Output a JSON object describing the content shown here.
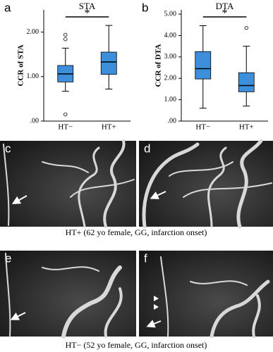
{
  "chart_data": [
    {
      "type": "box",
      "panel_label": "a",
      "title": "STA",
      "y_label": "CCR of STA",
      "categories": [
        "HT−",
        "HT+"
      ],
      "color": "#3d8fdc",
      "boxes": [
        {
          "min": 0.67,
          "q1": 0.88,
          "median": 1.06,
          "q3": 1.25,
          "max": 1.64,
          "outliers": [
            1.94,
            1.84,
            0.15
          ]
        },
        {
          "min": 0.72,
          "q1": 1.05,
          "median": 1.33,
          "q3": 1.55,
          "max": 2.15,
          "outliers": []
        }
      ],
      "ylim": [
        0,
        2.5
      ],
      "yticks": [
        {
          "value": 0,
          "label": ".00"
        },
        {
          "value": 1,
          "label": "1.00"
        },
        {
          "value": 2,
          "label": "2.00"
        }
      ],
      "annotation": "*"
    },
    {
      "type": "box",
      "panel_label": "b",
      "title": "DTA",
      "y_label": "CCR of DTA",
      "categories": [
        "HT−",
        "HT+"
      ],
      "color": "#3d8fdc",
      "boxes": [
        {
          "min": 0.6,
          "q1": 1.97,
          "median": 2.45,
          "q3": 3.25,
          "max": 4.46,
          "outliers": []
        },
        {
          "min": 0.7,
          "q1": 1.37,
          "median": 1.66,
          "q3": 2.26,
          "max": 3.5,
          "outliers": [
            4.36
          ]
        }
      ],
      "ylim": [
        0,
        5.2
      ],
      "yticks": [
        {
          "value": 0,
          "label": ".00"
        },
        {
          "value": 1,
          "label": "1.00"
        },
        {
          "value": 2,
          "label": "2.00"
        },
        {
          "value": 3,
          "label": "3.00"
        },
        {
          "value": 4,
          "label": "4.00"
        },
        {
          "value": 5,
          "label": "5.00"
        }
      ],
      "annotation": "*"
    }
  ],
  "panels": [
    {
      "label": "c"
    },
    {
      "label": "d"
    },
    {
      "label": "e"
    },
    {
      "label": "f"
    }
  ],
  "captions": [
    "HT+ (62 yo female, GG, infarction onset)",
    "HT− (52 yo female, GG, infarction onset)"
  ]
}
